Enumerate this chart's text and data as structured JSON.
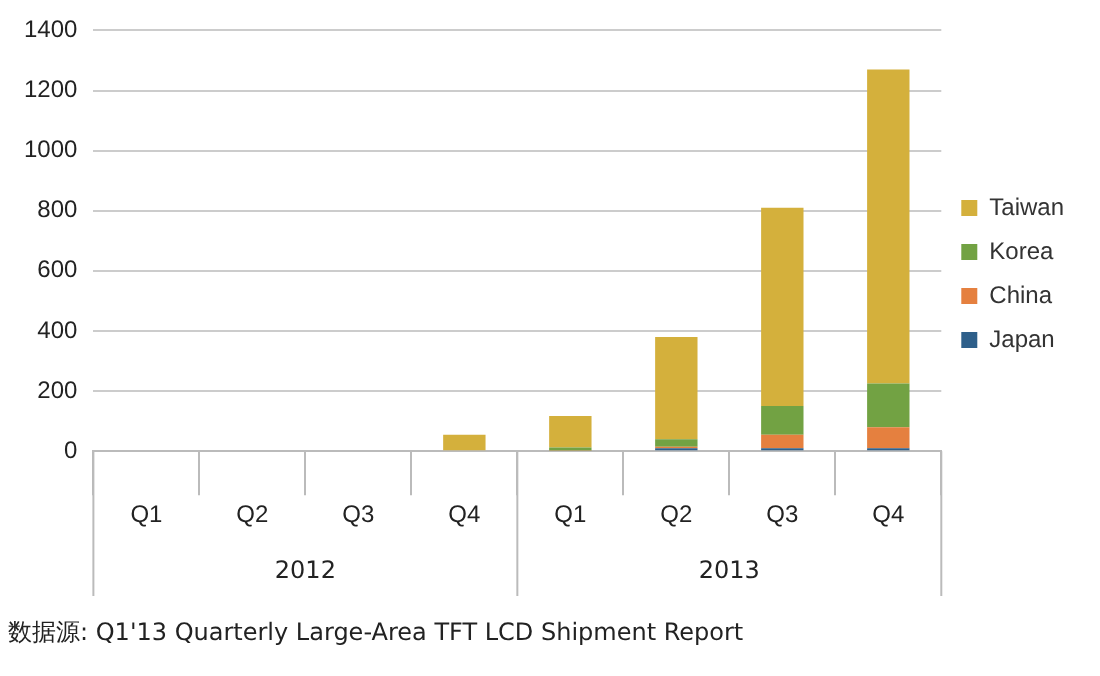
{
  "chart_data": {
    "type": "bar",
    "stacked": true,
    "categories": [
      "Q1",
      "Q2",
      "Q3",
      "Q4",
      "Q1",
      "Q2",
      "Q3",
      "Q4"
    ],
    "series": [
      {
        "name": "Japan",
        "color": "#2e5f8a",
        "values": [
          0,
          0,
          0,
          0,
          null,
          10,
          10,
          10
        ]
      },
      {
        "name": "China",
        "color": "#e5803f",
        "values": [
          0,
          0,
          0,
          0,
          2,
          5,
          45,
          70
        ]
      },
      {
        "name": "Korea",
        "color": "#72a243",
        "values": [
          0,
          0,
          0,
          0,
          10,
          25,
          95,
          145
        ]
      },
      {
        "name": "Taiwan",
        "color": "#d4b03c",
        "values": [
          0,
          0,
          0,
          55,
          105,
          340,
          660,
          1045
        ]
      }
    ],
    "ylim": [
      0,
      1400
    ],
    "yticks": [
      0,
      200,
      400,
      600,
      800,
      1000,
      1200,
      1400
    ],
    "grid": "y",
    "legend": "right",
    "annotations": [
      "2012",
      "2013",
      "数据源: Q1'13 Quarterly Large-Area TFT LCD Shipment Report"
    ]
  }
}
